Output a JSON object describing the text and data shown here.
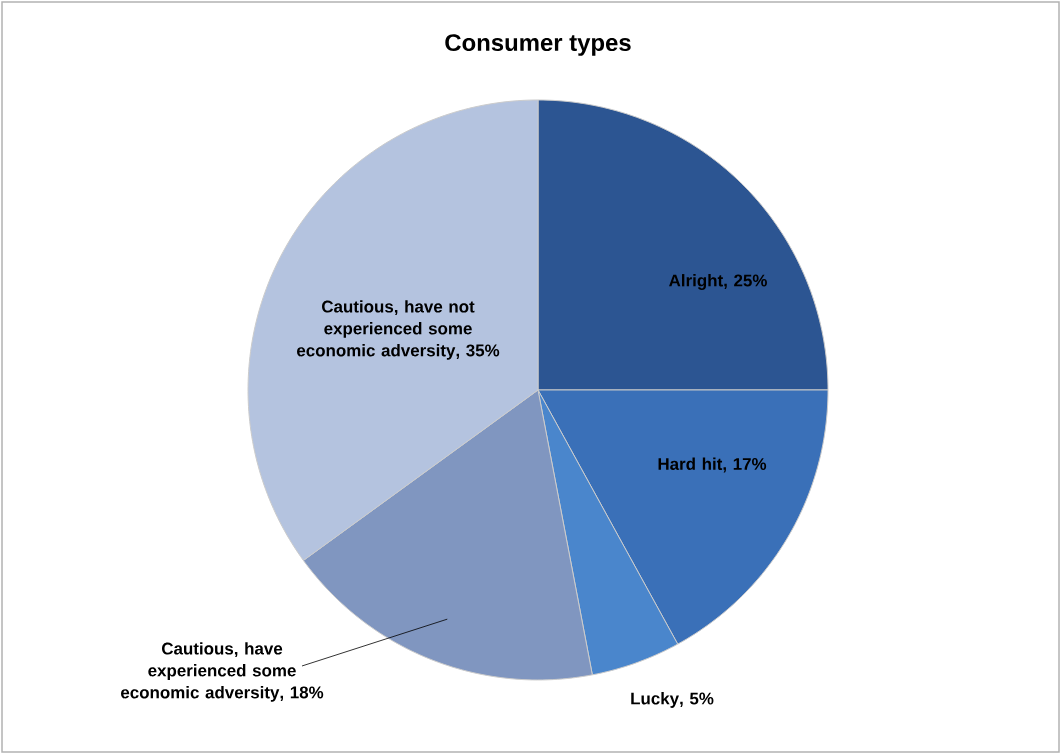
{
  "chart_data": {
    "type": "pie",
    "title": "Consumer types",
    "categories": [
      "Alright",
      "Hard hit",
      "Lucky",
      "Cautious, have experienced some economic adversity",
      "Cautious, have not experienced some economic adversity"
    ],
    "values": [
      25,
      17,
      5,
      18,
      35
    ],
    "colors": [
      "#2c5592",
      "#3a70b8",
      "#4a86cc",
      "#8096c0",
      "#b4c3df"
    ],
    "value_labels": [
      ", 25%",
      ", 17%",
      ", 5%",
      ", 18%",
      ", 35%"
    ]
  }
}
